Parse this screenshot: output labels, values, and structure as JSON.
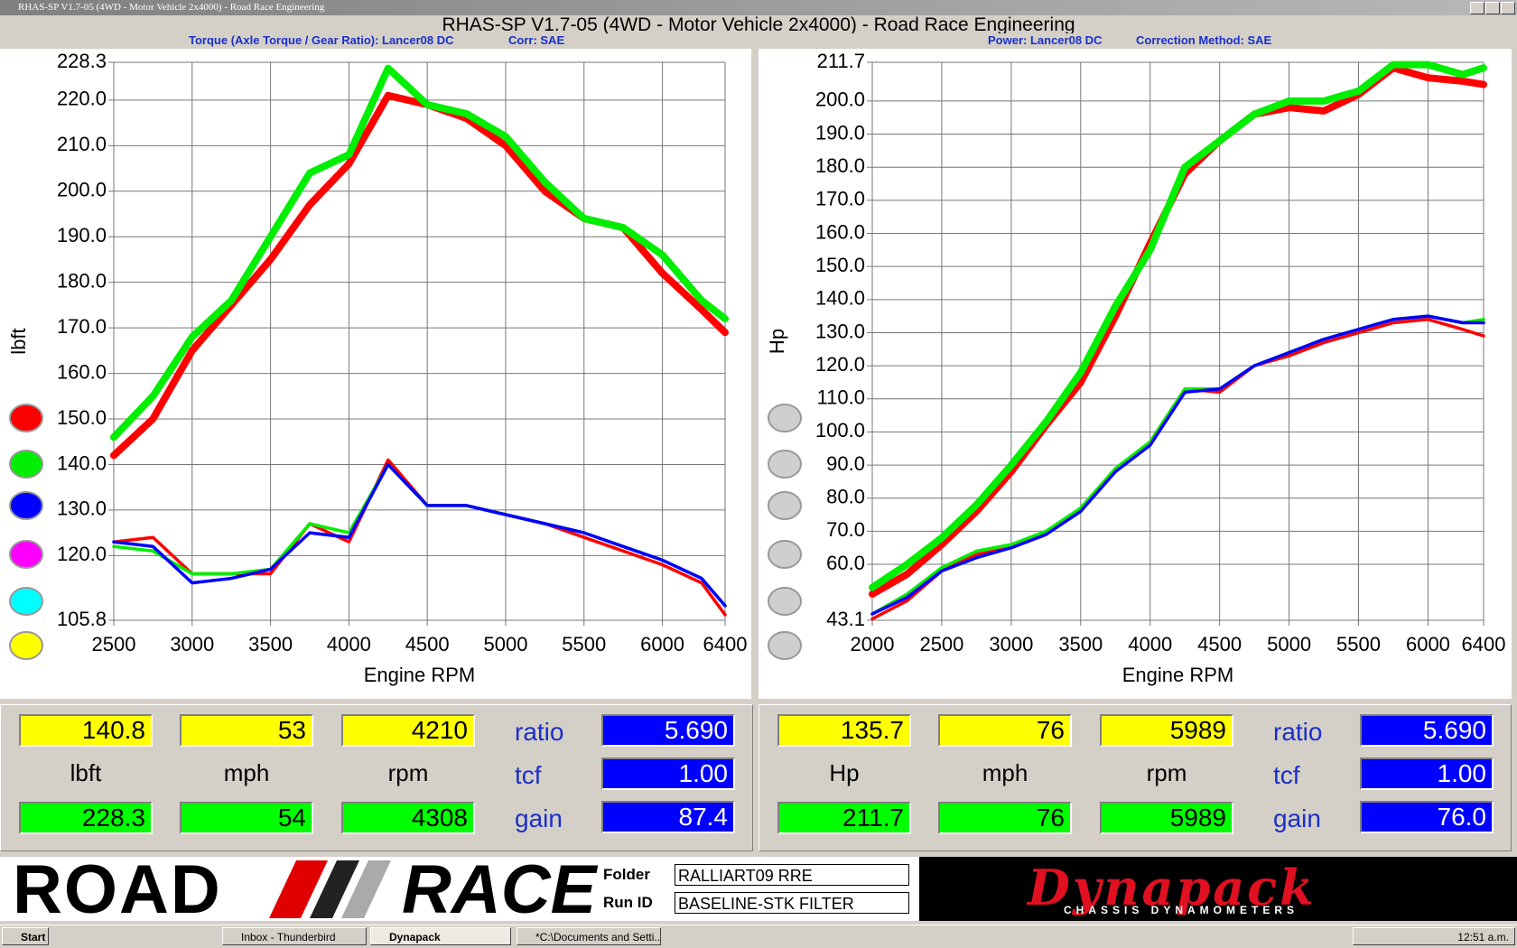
{
  "window": {
    "title": "RHAS-SP V1.7-05  (4WD - Motor Vehicle 2x4000) - Road Race Engineering",
    "heading": "RHAS-SP V1.7-05   (4WD - Motor Vehicle 2x4000) - Road Race Engineering"
  },
  "chart_data": [
    {
      "type": "line",
      "title": "Torque (Axle Torque / Gear Ratio): Lancer08 DC",
      "subtitle": "Corr: SAE",
      "xlabel": "Engine RPM",
      "ylabel": "lbft",
      "grid": true,
      "x": [
        2500,
        2750,
        3000,
        3250,
        3500,
        3750,
        4000,
        4250,
        4500,
        4750,
        5000,
        5250,
        5500,
        5750,
        6000,
        6250,
        6400
      ],
      "series": [
        {
          "color": "#ff0000",
          "values": [
            142,
            150,
            165,
            175,
            185,
            197,
            206,
            221,
            219,
            216,
            210,
            200,
            194,
            192,
            182,
            174,
            169
          ]
        },
        {
          "color": "#00ee00",
          "values": [
            146,
            155,
            168,
            176,
            190,
            204,
            208,
            227,
            219,
            217,
            212,
            202,
            194,
            192,
            186,
            176,
            172
          ]
        },
        {
          "color": "#ff0000",
          "values": [
            123,
            124,
            116,
            116,
            116,
            127,
            123,
            141,
            131,
            131,
            129,
            127,
            124,
            121,
            118,
            114,
            107
          ]
        },
        {
          "color": "#00ee00",
          "values": [
            122,
            121,
            116,
            116,
            117,
            127,
            125,
            140,
            131,
            131,
            129,
            127,
            125,
            122,
            119,
            115,
            109
          ]
        },
        {
          "color": "#0000ff",
          "values": [
            123,
            122,
            114,
            115,
            117,
            125,
            124,
            140,
            131,
            131,
            129,
            127,
            125,
            122,
            119,
            115,
            109
          ]
        }
      ],
      "xlim": [
        2500,
        6400
      ],
      "xticks": [
        2500,
        3000,
        3500,
        4000,
        4500,
        5000,
        5500,
        6000,
        6400
      ],
      "ylim": [
        105.8,
        228.3
      ],
      "yticks": [
        105.8,
        {
          "value": 120,
          "label": "120.0"
        },
        {
          "value": 130,
          "label": "130.0"
        },
        {
          "value": 140,
          "label": "140.0"
        },
        {
          "value": 150,
          "label": "150.0"
        },
        {
          "value": 160,
          "label": "160.0"
        },
        {
          "value": 170,
          "label": "170.0"
        },
        {
          "value": 180,
          "label": "180.0"
        },
        {
          "value": 190,
          "label": "190.0"
        },
        {
          "value": 200,
          "label": "200.0"
        },
        {
          "value": 210,
          "label": "210.0"
        },
        {
          "value": 220,
          "label": "220.0"
        },
        228.3
      ]
    },
    {
      "type": "line",
      "title": "Power: Lancer08 DC",
      "subtitle": "Correction Method: SAE",
      "xlabel": "Engine RPM",
      "ylabel": "Hp",
      "grid": true,
      "x": [
        2000,
        2250,
        2500,
        2750,
        3000,
        3250,
        3500,
        3750,
        4000,
        4250,
        4500,
        4750,
        5000,
        5250,
        5500,
        5750,
        6000,
        6250,
        6400
      ],
      "series": [
        {
          "color": "#ff0000",
          "values": [
            51,
            57,
            66,
            76,
            88,
            102,
            115,
            135,
            157,
            178,
            188,
            196,
            198,
            197,
            202,
            210,
            207,
            206,
            205
          ]
        },
        {
          "color": "#00ee00",
          "values": [
            53,
            60,
            68,
            78,
            90,
            103,
            118,
            138,
            155,
            180,
            188,
            196,
            200,
            200,
            203,
            211,
            211,
            208,
            210
          ]
        },
        {
          "color": "#ff0000",
          "values": [
            43.5,
            49,
            58,
            63,
            65,
            69,
            77,
            88,
            97,
            113,
            112,
            120,
            123,
            127,
            130,
            133,
            134,
            131,
            129
          ]
        },
        {
          "color": "#00ee00",
          "values": [
            45,
            51,
            59,
            64,
            66,
            70,
            77,
            89,
            97,
            113,
            113,
            120,
            124,
            128,
            131,
            134,
            135,
            133,
            134
          ]
        },
        {
          "color": "#0000ff",
          "values": [
            45,
            50,
            58,
            62,
            65,
            69,
            76,
            88,
            96,
            112,
            113,
            120,
            124,
            128,
            131,
            134,
            135,
            133,
            133
          ]
        }
      ],
      "xlim": [
        2000,
        6400
      ],
      "xticks": [
        2000,
        2500,
        3000,
        3500,
        4000,
        4500,
        5000,
        5500,
        6000,
        6400
      ],
      "ylim": [
        43.1,
        211.7
      ],
      "yticks": [
        43.1,
        {
          "value": 60,
          "label": "60.0"
        },
        {
          "value": 70,
          "label": "70.0"
        },
        {
          "value": 80,
          "label": "80.0"
        },
        {
          "value": 90,
          "label": "90.0"
        },
        {
          "value": 100,
          "label": "100.0"
        },
        {
          "value": 110,
          "label": "110.0"
        },
        {
          "value": 120,
          "label": "120.0"
        },
        {
          "value": 130,
          "label": "130.0"
        },
        {
          "value": 140,
          "label": "140.0"
        },
        {
          "value": 150,
          "label": "150.0"
        },
        {
          "value": 160,
          "label": "160.0"
        },
        {
          "value": 170,
          "label": "170.0"
        },
        {
          "value": 180,
          "label": "180.0"
        },
        {
          "value": 190,
          "label": "190.0"
        },
        {
          "value": 200,
          "label": "200.0"
        },
        211.7
      ]
    }
  ],
  "readouts": [
    {
      "top": [
        "140.8",
        "53",
        "4210"
      ],
      "units": [
        "lbft",
        "mph",
        "rpm"
      ],
      "bottom": [
        "228.3",
        "54",
        "4308"
      ],
      "labels": [
        "ratio",
        "tcf",
        "gain"
      ],
      "values": [
        "5.690",
        "1.00",
        "87.4"
      ]
    },
    {
      "top": [
        "135.7",
        "76",
        "5989"
      ],
      "units": [
        "Hp",
        "mph",
        "rpm"
      ],
      "bottom": [
        "211.7",
        "76",
        "5989"
      ],
      "labels": [
        "ratio",
        "tcf",
        "gain"
      ],
      "values": [
        "5.690",
        "1.00",
        "76.0"
      ]
    }
  ],
  "footer": {
    "logo": [
      "ROAD",
      "RACE"
    ],
    "folder_label": "Folder",
    "folder": "RALLIART09 RRE",
    "run_label": "Run ID",
    "run_id": "BASELINE-STK FILTER",
    "brand": "Dynapack",
    "brand_sub": "CHASSIS DYNAMOMETERS"
  },
  "taskbar": {
    "start": "Start",
    "items": [
      "Inbox - Thunderbird",
      "Dynapack",
      "*C:\\Documents and Setti..."
    ],
    "clock": "12:51 a.m."
  }
}
